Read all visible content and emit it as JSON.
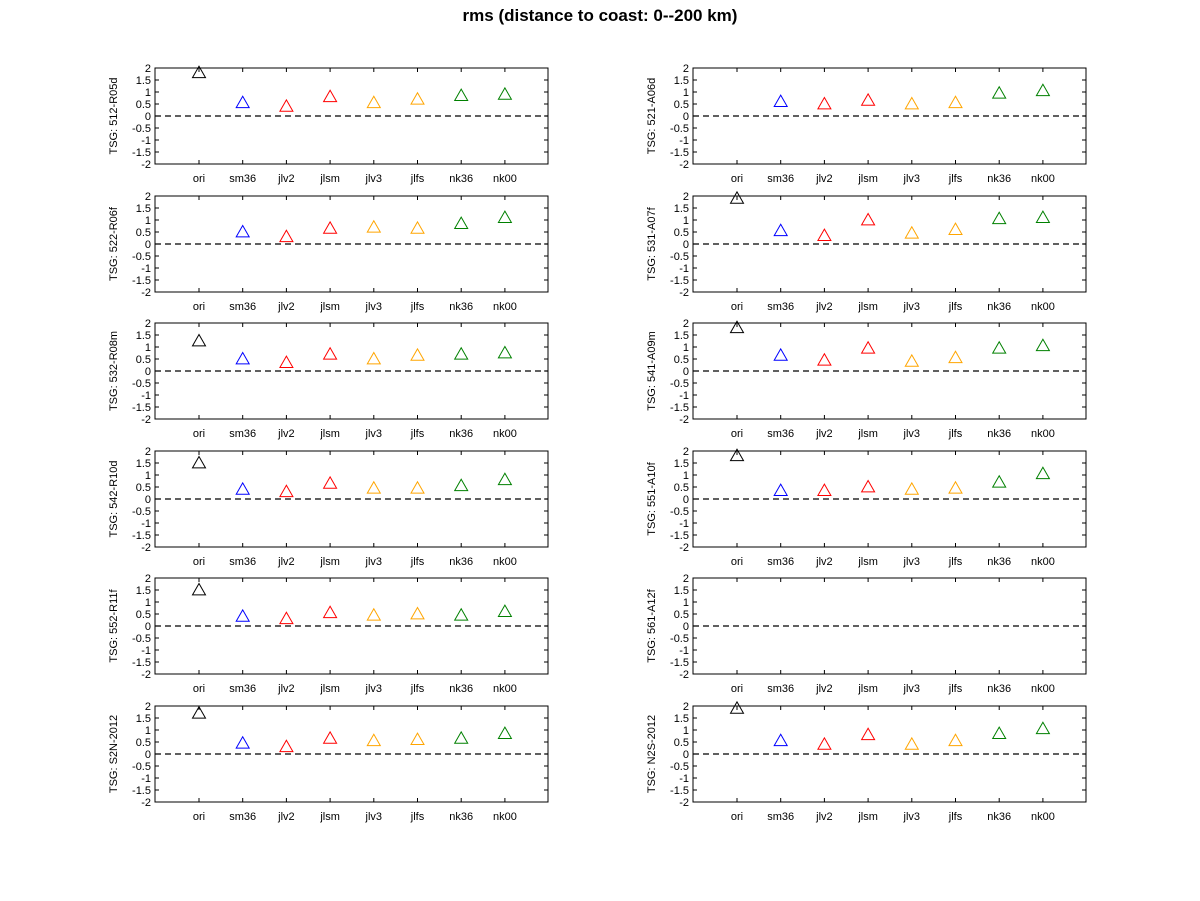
{
  "title": "rms (distance to coast: 0--200 km)",
  "colors": {
    "ori": "#000000",
    "sm36": "#0000ff",
    "jlv2": "#ff0000",
    "jlsm": "#ff0000",
    "jlv3": "#ffa500",
    "jlfs": "#ffa500",
    "nk36": "#008000",
    "nk00": "#008000"
  },
  "chart_data": [
    {
      "type": "scatter",
      "ylabel": "TSG: 512-R05d",
      "categories": [
        "ori",
        "sm36",
        "jlv2",
        "jlsm",
        "jlv3",
        "jlfs",
        "nk36",
        "nk00"
      ],
      "values": [
        1.8,
        0.55,
        0.4,
        0.8,
        0.55,
        0.7,
        0.85,
        0.9
      ],
      "ylim": [
        -2,
        2
      ],
      "yticks": [
        2,
        1.5,
        1,
        0.5,
        0,
        -0.5,
        -1,
        -1.5,
        -2
      ],
      "reference_line": 0
    },
    {
      "type": "scatter",
      "ylabel": "TSG: 521-A06d",
      "categories": [
        "ori",
        "sm36",
        "jlv2",
        "jlsm",
        "jlv3",
        "jlfs",
        "nk36",
        "nk00"
      ],
      "values": [
        null,
        0.6,
        0.5,
        0.65,
        0.5,
        0.55,
        0.95,
        1.05
      ],
      "ylim": [
        -2,
        2
      ],
      "yticks": [
        2,
        1.5,
        1,
        0.5,
        0,
        -0.5,
        -1,
        -1.5,
        -2
      ],
      "reference_line": 0
    },
    {
      "type": "scatter",
      "ylabel": "TSG: 522-R06f",
      "categories": [
        "ori",
        "sm36",
        "jlv2",
        "jlsm",
        "jlv3",
        "jlfs",
        "nk36",
        "nk00"
      ],
      "values": [
        null,
        0.5,
        0.3,
        0.65,
        0.7,
        0.65,
        0.85,
        1.1
      ],
      "ylim": [
        -2,
        2
      ],
      "yticks": [
        2,
        1.5,
        1,
        0.5,
        0,
        -0.5,
        -1,
        -1.5,
        -2
      ],
      "reference_line": 0
    },
    {
      "type": "scatter",
      "ylabel": "TSG: 531-A07f",
      "categories": [
        "ori",
        "sm36",
        "jlv2",
        "jlsm",
        "jlv3",
        "jlfs",
        "nk36",
        "nk00"
      ],
      "values": [
        1.9,
        0.55,
        0.35,
        1.0,
        0.45,
        0.6,
        1.05,
        1.1
      ],
      "ylim": [
        -2,
        2
      ],
      "yticks": [
        2,
        1.5,
        1,
        0.5,
        0,
        -0.5,
        -1,
        -1.5,
        -2
      ],
      "reference_line": 0
    },
    {
      "type": "scatter",
      "ylabel": "TSG: 532-R08m",
      "categories": [
        "ori",
        "sm36",
        "jlv2",
        "jlsm",
        "jlv3",
        "jlfs",
        "nk36",
        "nk00"
      ],
      "values": [
        1.25,
        0.5,
        0.35,
        0.7,
        0.5,
        0.65,
        0.7,
        0.75
      ],
      "ylim": [
        -2,
        2
      ],
      "yticks": [
        2,
        1.5,
        1,
        0.5,
        0,
        -0.5,
        -1,
        -1.5,
        -2
      ],
      "reference_line": 0
    },
    {
      "type": "scatter",
      "ylabel": "TSG: 541-A09m",
      "categories": [
        "ori",
        "sm36",
        "jlv2",
        "jlsm",
        "jlv3",
        "jlfs",
        "nk36",
        "nk00"
      ],
      "values": [
        1.8,
        0.65,
        0.45,
        0.95,
        0.4,
        0.55,
        0.95,
        1.05
      ],
      "ylim": [
        -2,
        2
      ],
      "yticks": [
        2,
        1.5,
        1,
        0.5,
        0,
        -0.5,
        -1,
        -1.5,
        -2
      ],
      "reference_line": 0
    },
    {
      "type": "scatter",
      "ylabel": "TSG: 542-R10d",
      "categories": [
        "ori",
        "sm36",
        "jlv2",
        "jlsm",
        "jlv3",
        "jlfs",
        "nk36",
        "nk00"
      ],
      "values": [
        1.5,
        0.4,
        0.3,
        0.65,
        0.45,
        0.45,
        0.55,
        0.8
      ],
      "ylim": [
        -2,
        2
      ],
      "yticks": [
        2,
        1.5,
        1,
        0.5,
        0,
        -0.5,
        -1,
        -1.5,
        -2
      ],
      "reference_line": 0
    },
    {
      "type": "scatter",
      "ylabel": "TSG: 551-A10f",
      "categories": [
        "ori",
        "sm36",
        "jlv2",
        "jlsm",
        "jlv3",
        "jlfs",
        "nk36",
        "nk00"
      ],
      "values": [
        1.8,
        0.35,
        0.35,
        0.5,
        0.4,
        0.45,
        0.7,
        1.05
      ],
      "ylim": [
        -2,
        2
      ],
      "yticks": [
        2,
        1.5,
        1,
        0.5,
        0,
        -0.5,
        -1,
        -1.5,
        -2
      ],
      "reference_line": 0
    },
    {
      "type": "scatter",
      "ylabel": "TSG: 552-R11f",
      "categories": [
        "ori",
        "sm36",
        "jlv2",
        "jlsm",
        "jlv3",
        "jlfs",
        "nk36",
        "nk00"
      ],
      "values": [
        1.5,
        0.4,
        0.3,
        0.55,
        0.45,
        0.5,
        0.45,
        0.6
      ],
      "ylim": [
        -2,
        2
      ],
      "yticks": [
        2,
        1.5,
        1,
        0.5,
        0,
        -0.5,
        -1,
        -1.5,
        -2
      ],
      "reference_line": 0
    },
    {
      "type": "scatter",
      "ylabel": "TSG: 561-A12f",
      "categories": [
        "ori",
        "sm36",
        "jlv2",
        "jlsm",
        "jlv3",
        "jlfs",
        "nk36",
        "nk00"
      ],
      "values": [
        null,
        null,
        null,
        null,
        null,
        null,
        null,
        null
      ],
      "ylim": [
        -2,
        2
      ],
      "yticks": [
        2,
        1.5,
        1,
        0.5,
        0,
        -0.5,
        -1,
        -1.5,
        -2
      ],
      "reference_line": 0
    },
    {
      "type": "scatter",
      "ylabel": "TSG: S2N-2012",
      "categories": [
        "ori",
        "sm36",
        "jlv2",
        "jlsm",
        "jlv3",
        "jlfs",
        "nk36",
        "nk00"
      ],
      "values": [
        1.7,
        0.45,
        0.3,
        0.65,
        0.55,
        0.6,
        0.65,
        0.85
      ],
      "ylim": [
        -2,
        2
      ],
      "yticks": [
        2,
        1.5,
        1,
        0.5,
        0,
        -0.5,
        -1,
        -1.5,
        -2
      ],
      "reference_line": 0
    },
    {
      "type": "scatter",
      "ylabel": "TSG: N2S-2012",
      "categories": [
        "ori",
        "sm36",
        "jlv2",
        "jlsm",
        "jlv3",
        "jlfs",
        "nk36",
        "nk00"
      ],
      "values": [
        1.9,
        0.55,
        0.4,
        0.8,
        0.4,
        0.55,
        0.85,
        1.05
      ],
      "ylim": [
        -2,
        2
      ],
      "yticks": [
        2,
        1.5,
        1,
        0.5,
        0,
        -0.5,
        -1,
        -1.5,
        -2
      ],
      "reference_line": 0
    }
  ]
}
